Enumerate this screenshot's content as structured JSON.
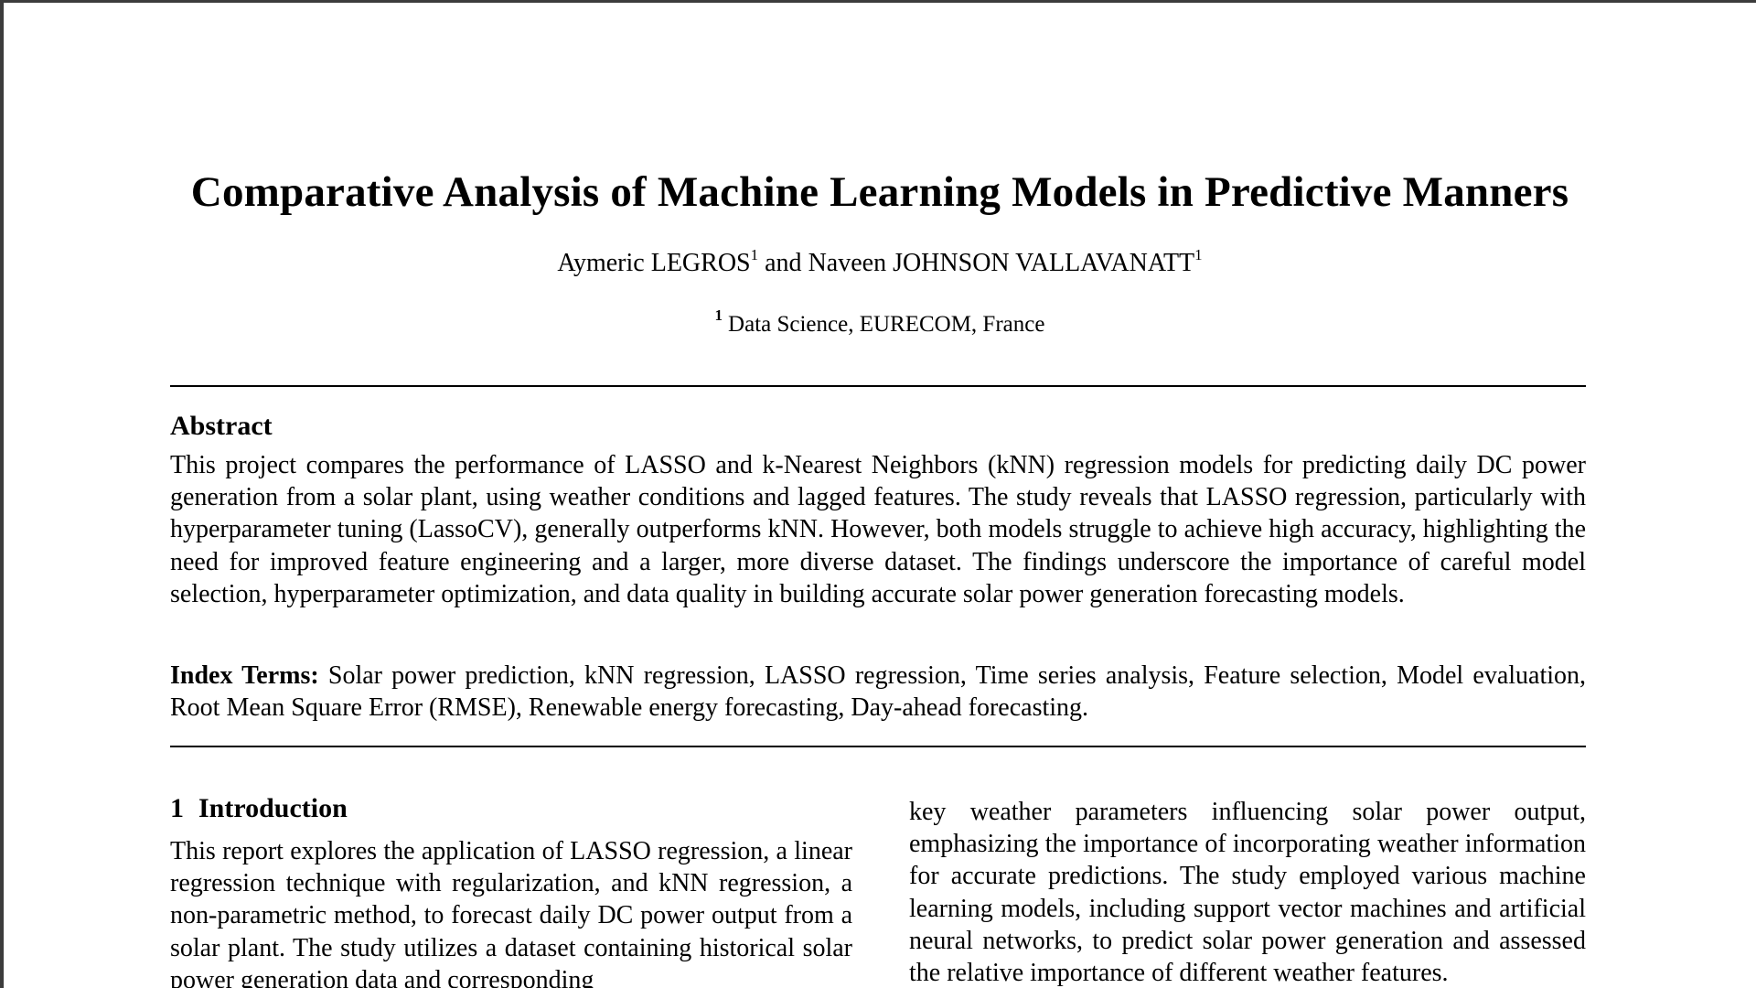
{
  "paper": {
    "title": "Comparative Analysis of Machine Learning Models in Predictive Manners",
    "authors": [
      {
        "name": "Aymeric LEGROS",
        "affiliation_mark": "1"
      },
      {
        "name": "Naveen JOHNSON VALLAVANATT",
        "affiliation_mark": "1"
      }
    ],
    "author_connector": "and",
    "affiliation": {
      "mark": "1",
      "text": "Data Science, EURECOM, France"
    },
    "abstract": {
      "heading": "Abstract",
      "text": "This project compares the performance of LASSO and k-Nearest Neighbors (kNN) regression models for predicting daily DC power generation from a solar plant, using weather conditions and lagged features. The study reveals that LASSO regression, particularly with hyperparameter tuning (LassoCV), generally outperforms kNN. However, both models struggle to achieve high accuracy, highlighting the need for improved feature engineering and a larger, more diverse dataset. The findings underscore the importance of careful model selection, hyperparameter optimization, and data quality in building accurate solar power generation forecasting models."
    },
    "index_terms": {
      "label": "Index Terms:",
      "text": "Solar power prediction, kNN regression, LASSO regression, Time series analysis, Feature selection, Model evaluation, Root Mean Square Error (RMSE), Renewable energy forecasting, Day-ahead forecasting."
    },
    "introduction": {
      "number": "1",
      "heading": "Introduction",
      "left_column_text": "This report explores the application of LASSO regression, a linear regression technique with regularization, and kNN regression, a non-parametric method, to forecast daily DC power output from a solar plant. The study utilizes a dataset containing historical solar power generation data and corresponding",
      "right_column_text": "key weather parameters influencing solar power output, emphasizing the importance of incorporating weather information for accurate predictions. The study employed various machine learning models, including support vector machines and artificial neural networks, to predict solar power generation and assessed the relative importance of different weather features."
    }
  }
}
